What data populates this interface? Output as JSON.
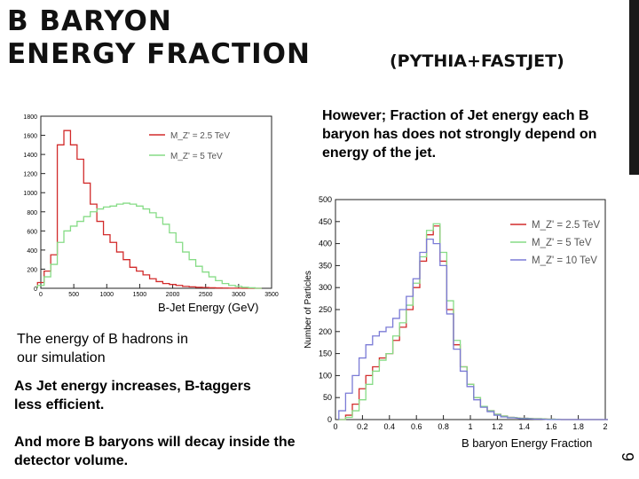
{
  "slide": {
    "title_line1": "B BARYON",
    "title_line2": "ENERGY FRACTION",
    "subtitle": "(PYTHIA+FASTJET)",
    "page_number": "9",
    "note_right": "However; Fraction of Jet energy each B baryon has does not strongly depend on energy of the jet.",
    "caption": "The energy of B hadrons in our simulation",
    "note1": "As Jet energy increases, B-taggers less efficient.",
    "note2": "And more B baryons will decay inside the detector volume."
  },
  "colors": {
    "red": "#d22b2b",
    "green": "#86dc86",
    "blue": "#7b7bd6",
    "accent_bar": "#1a1a1a"
  },
  "chart_data": [
    {
      "type": "line",
      "title": "",
      "xlabel": "B-Jet Energy (GeV)",
      "ylabel": "",
      "xlim": [
        0,
        3500
      ],
      "ylim": [
        0,
        1800
      ],
      "xticks": [
        "0",
        "500",
        "1000",
        "1500",
        "2000",
        "2500",
        "3000",
        "3500"
      ],
      "yticks": [
        "0",
        "200",
        "400",
        "600",
        "800",
        "1000",
        "1200",
        "1400",
        "1600",
        "1800"
      ],
      "legend_position": "top-right",
      "x": [
        0,
        100,
        200,
        300,
        400,
        500,
        600,
        700,
        800,
        900,
        1000,
        1100,
        1200,
        1300,
        1400,
        1500,
        1600,
        1700,
        1800,
        1900,
        2000,
        2100,
        2200,
        2300,
        2400,
        2500,
        2600,
        2700,
        2800,
        2900,
        3000,
        3100,
        3200,
        3300
      ],
      "series": [
        {
          "name": "M_Z' = 2.5 TeV",
          "color": "red",
          "values": [
            60,
            180,
            350,
            1500,
            1650,
            1500,
            1350,
            1100,
            880,
            700,
            560,
            480,
            380,
            300,
            220,
            180,
            140,
            100,
            70,
            50,
            40,
            30,
            20,
            15,
            10,
            8,
            5,
            3,
            2,
            1,
            1,
            0,
            0,
            0
          ]
        },
        {
          "name": "M_Z' = 5 TeV",
          "color": "green",
          "values": [
            30,
            120,
            250,
            480,
            600,
            650,
            700,
            750,
            800,
            830,
            850,
            860,
            880,
            890,
            880,
            860,
            830,
            790,
            740,
            670,
            580,
            480,
            380,
            300,
            230,
            170,
            120,
            80,
            50,
            30,
            20,
            10,
            5,
            0
          ]
        }
      ]
    },
    {
      "type": "line",
      "title": "",
      "xlabel": "B baryon Energy Fraction",
      "ylabel": "Number of Particles",
      "xlim": [
        0,
        2
      ],
      "ylim": [
        0,
        500
      ],
      "xticks": [
        "0",
        "0.2",
        "0.4",
        "0.6",
        "0.8",
        "1",
        "1.2",
        "1.4",
        "1.6",
        "1.8",
        "2"
      ],
      "yticks": [
        "0",
        "50",
        "100",
        "150",
        "200",
        "250",
        "300",
        "350",
        "400",
        "450",
        "500"
      ],
      "legend_position": "top-right",
      "x": [
        0.05,
        0.1,
        0.15,
        0.2,
        0.25,
        0.3,
        0.35,
        0.4,
        0.45,
        0.5,
        0.55,
        0.6,
        0.65,
        0.7,
        0.75,
        0.8,
        0.85,
        0.9,
        0.95,
        1.0,
        1.05,
        1.1,
        1.15,
        1.2,
        1.25,
        1.3,
        1.4,
        1.5,
        1.6,
        1.7,
        1.8,
        1.9,
        2.0
      ],
      "series": [
        {
          "name": "M_Z' = 2.5 TeV",
          "color": "red",
          "values": [
            0,
            10,
            35,
            70,
            100,
            120,
            140,
            150,
            180,
            210,
            250,
            300,
            360,
            420,
            440,
            360,
            250,
            170,
            120,
            80,
            50,
            30,
            20,
            12,
            8,
            5,
            3,
            2,
            1,
            0,
            0,
            0,
            0
          ]
        },
        {
          "name": "M_Z' = 5 TeV",
          "color": "green",
          "values": [
            0,
            5,
            20,
            45,
            80,
            110,
            135,
            150,
            190,
            220,
            260,
            310,
            370,
            430,
            445,
            380,
            270,
            180,
            120,
            80,
            50,
            30,
            20,
            12,
            8,
            5,
            3,
            2,
            1,
            0,
            0,
            0,
            0
          ]
        },
        {
          "name": "M_Z' = 10 TeV",
          "color": "blue",
          "values": [
            20,
            60,
            100,
            140,
            170,
            190,
            200,
            210,
            230,
            250,
            280,
            320,
            380,
            410,
            400,
            350,
            240,
            160,
            110,
            75,
            45,
            28,
            18,
            10,
            6,
            4,
            2,
            1,
            0,
            0,
            0,
            0,
            0
          ]
        }
      ]
    }
  ]
}
